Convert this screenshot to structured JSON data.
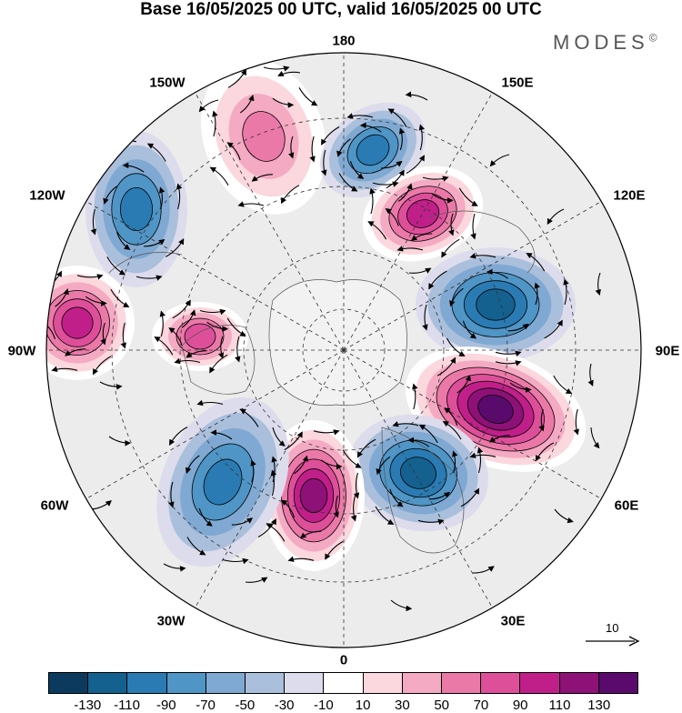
{
  "title": "Base 16/05/2025 00 UTC, valid 16/05/2025 00 UTC",
  "brand": "MODES",
  "brand_symbol": "©",
  "lon_labels": {
    "top": "180",
    "top_left": "150W",
    "top_right": "150E",
    "upper_left": "120W",
    "upper_right": "120E",
    "left": "90W",
    "right": "90E",
    "lower_left": "60W",
    "lower_right": "60E",
    "bottom_left": "30W",
    "bottom_right": "30E",
    "bottom": "0"
  },
  "reference_vector": {
    "label": "10"
  },
  "colorbar": {
    "ticks": [
      "-130",
      "-110",
      "-90",
      "-70",
      "-50",
      "-30",
      "-10",
      "10",
      "30",
      "50",
      "70",
      "90",
      "110",
      "130"
    ],
    "colors": [
      "#0b3a5e",
      "#14618f",
      "#2a7bb3",
      "#4f95c6",
      "#7fa9d2",
      "#a9bfdb",
      "#dcdcec",
      "#ffffff",
      "#fbd7de",
      "#f4aac2",
      "#eb79a8",
      "#de4f9a",
      "#c01f89",
      "#8e1178",
      "#5a0a6c"
    ]
  },
  "map_features": {
    "anomalies": [
      {
        "name": "north-pacific-positive",
        "sign": "positive",
        "level": 50
      },
      {
        "name": "bering-negative",
        "sign": "negative",
        "level": -70
      },
      {
        "name": "kamchatka-positive",
        "sign": "positive",
        "level": 90
      },
      {
        "name": "alaska-negative",
        "sign": "negative",
        "level": -70
      },
      {
        "name": "canada-positive",
        "sign": "positive",
        "level": 90
      },
      {
        "name": "hudson-positive",
        "sign": "positive",
        "level": 70
      },
      {
        "name": "siberia-negative",
        "sign": "negative",
        "level": -90
      },
      {
        "name": "ural-positive",
        "sign": "positive",
        "level": 130
      },
      {
        "name": "scandinavia-negative",
        "sign": "negative",
        "level": -90
      },
      {
        "name": "atlantic-positive",
        "sign": "positive",
        "level": 110
      },
      {
        "name": "west-atlantic-negative",
        "sign": "negative",
        "level": -70
      }
    ]
  }
}
